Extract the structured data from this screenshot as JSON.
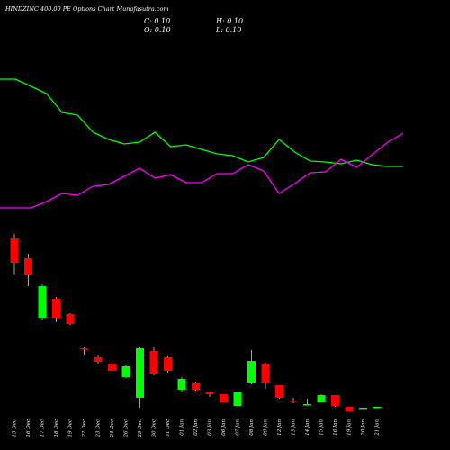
{
  "chart_data": {
    "type": "candlestick",
    "title": "HINDZINC 400.00 PE Options Chart Munafasutra.com",
    "readouts": {
      "C": "C: 0.10",
      "H": "H: 0.10",
      "O": "O: 0.10",
      "L": "L: 0.10"
    },
    "categories": [
      "15 Dec",
      "16 Dec",
      "17 Dec",
      "18 Dec",
      "19 Dec",
      "22 Dec",
      "23 Dec",
      "24 Dec",
      "26 Dec",
      "29 Dec",
      "30 Dec",
      "31 Dec",
      "01 Jan",
      "02 Jan",
      "03 Jan",
      "06 Jan",
      "07 Jan",
      "08 Jan",
      "09 Jan",
      "12 Jan",
      "13 Jan",
      "14 Jan",
      "15 Jan",
      "16 Jan",
      "19 Jan",
      "20 Jan",
      "21 Jan"
    ],
    "open": [
      195,
      173,
      107,
      128,
      111,
      73,
      63,
      56,
      41,
      18,
      70,
      63,
      27,
      35,
      25,
      22,
      9,
      35,
      56,
      32,
      15,
      10,
      13,
      21,
      8,
      6,
      7
    ],
    "high": [
      200,
      178,
      144,
      130,
      112,
      74,
      66,
      58,
      54,
      75,
      75,
      64,
      41,
      36,
      25,
      22,
      25,
      71,
      57,
      32,
      18,
      17,
      22,
      21,
      8,
      7,
      8
    ],
    "low": [
      155,
      142,
      105,
      102,
      99,
      66,
      56,
      46,
      40,
      7,
      43,
      46,
      25,
      26,
      19,
      13,
      9,
      33,
      28,
      17,
      12,
      10,
      13,
      8,
      3,
      6,
      7
    ],
    "close": [
      168,
      155,
      142,
      107,
      100,
      72,
      58,
      48,
      53,
      73,
      45,
      48,
      39,
      27,
      22,
      13,
      25,
      59,
      35,
      18,
      14,
      11,
      21,
      9,
      3,
      7,
      8
    ],
    "ylim": [
      0,
      200
    ],
    "up_color": "#00ff00",
    "down_color": "#ff0000",
    "lines": [
      {
        "color": "#00ff00",
        "values": [
          172,
          172,
          164,
          156,
          135,
          132,
          113,
          105,
          100,
          102,
          113,
          97,
          99,
          94,
          89,
          87,
          80,
          85,
          105,
          91,
          81,
          80,
          78,
          82,
          77,
          75,
          75
        ]
      },
      {
        "color": "#ff00ff",
        "values": [
          29,
          29,
          29,
          36,
          45,
          43,
          53,
          55,
          64,
          73,
          62,
          66,
          57,
          57,
          67,
          67,
          77,
          70,
          45,
          56,
          68,
          69,
          83,
          74,
          88,
          102,
          112
        ]
      }
    ],
    "y2lim": [
      0,
      200
    ]
  }
}
